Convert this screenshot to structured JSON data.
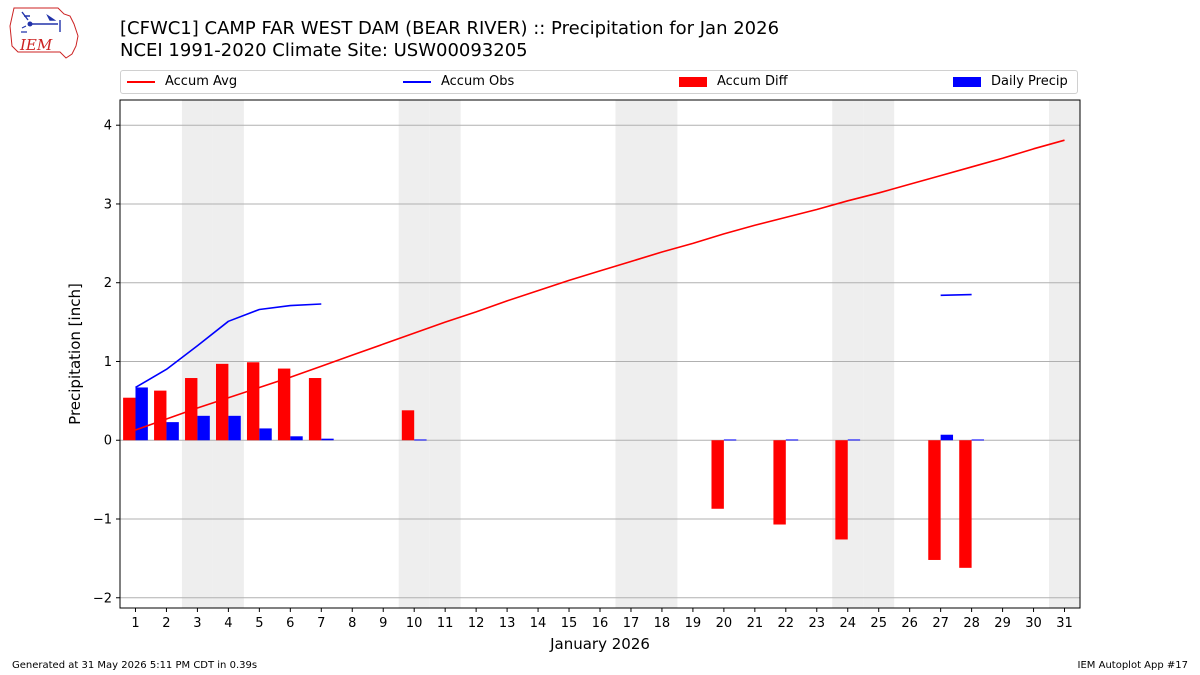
{
  "header": {
    "title_line1": "[CFWC1] CAMP FAR WEST DAM (BEAR RIVER) :: Precipitation for Jan 2026",
    "title_line2": "NCEI 1991-2020 Climate Site: USW00093205",
    "logo_text": "IEM"
  },
  "footer": {
    "left": "Generated at 31 May 2026 5:11 PM CDT in 0.39s",
    "right": "IEM Autoplot App #17"
  },
  "colors": {
    "avg": "#ff0000",
    "obs": "#0000ff",
    "diff": "#ff0000",
    "daily": "#0000ff",
    "weekend": "#eeeeee",
    "grid": "#b0b0b0"
  },
  "chart_data": {
    "type": "bar",
    "xlabel": "January 2026",
    "ylabel": "Precipitation [inch]",
    "x": [
      1,
      2,
      3,
      4,
      5,
      6,
      7,
      8,
      9,
      10,
      11,
      12,
      13,
      14,
      15,
      16,
      17,
      18,
      19,
      20,
      21,
      22,
      23,
      24,
      25,
      26,
      27,
      28,
      29,
      30,
      31
    ],
    "xlim": [
      0.5,
      31.5
    ],
    "ylim": [
      -2.13,
      4.32
    ],
    "yticks": [
      -2,
      -1,
      0,
      1,
      2,
      3,
      4
    ],
    "weekend_days": [
      3,
      4,
      10,
      11,
      17,
      18,
      24,
      25,
      31
    ],
    "grid": "y",
    "legend_position": "top",
    "legend": [
      "Accum Avg",
      "Accum Obs",
      "Accum Diff",
      "Daily Precip"
    ],
    "series": [
      {
        "name": "Accum Avg",
        "kind": "line",
        "values": [
          0.13,
          0.27,
          0.41,
          0.54,
          0.67,
          0.8,
          0.94,
          1.08,
          1.22,
          1.36,
          1.5,
          1.63,
          1.77,
          1.9,
          2.03,
          2.15,
          2.27,
          2.39,
          2.5,
          2.62,
          2.73,
          2.83,
          2.93,
          3.04,
          3.14,
          3.25,
          3.36,
          3.47,
          3.58,
          3.7,
          3.81
        ]
      },
      {
        "name": "Accum Obs",
        "kind": "line",
        "values": [
          0.67,
          0.9,
          1.2,
          1.51,
          1.66,
          1.71,
          1.73,
          null,
          null,
          null,
          null,
          null,
          null,
          null,
          null,
          null,
          null,
          null,
          null,
          null,
          null,
          null,
          null,
          null,
          null,
          null,
          1.84,
          1.85,
          null,
          null,
          null
        ]
      },
      {
        "name": "Accum Diff",
        "kind": "bar",
        "values": [
          0.54,
          0.63,
          0.79,
          0.97,
          0.99,
          0.91,
          0.79,
          null,
          null,
          0.38,
          null,
          null,
          null,
          null,
          null,
          null,
          null,
          null,
          null,
          -0.87,
          null,
          -1.07,
          null,
          -1.26,
          null,
          null,
          -1.52,
          -1.62,
          null,
          null,
          null
        ]
      },
      {
        "name": "Daily Precip",
        "kind": "bar",
        "values": [
          0.67,
          0.23,
          0.31,
          0.31,
          0.15,
          0.05,
          0.02,
          null,
          null,
          0.01,
          null,
          null,
          null,
          null,
          null,
          null,
          null,
          null,
          null,
          0.01,
          null,
          0.01,
          null,
          0.01,
          null,
          null,
          0.07,
          0.01,
          null,
          null,
          null
        ]
      }
    ]
  }
}
